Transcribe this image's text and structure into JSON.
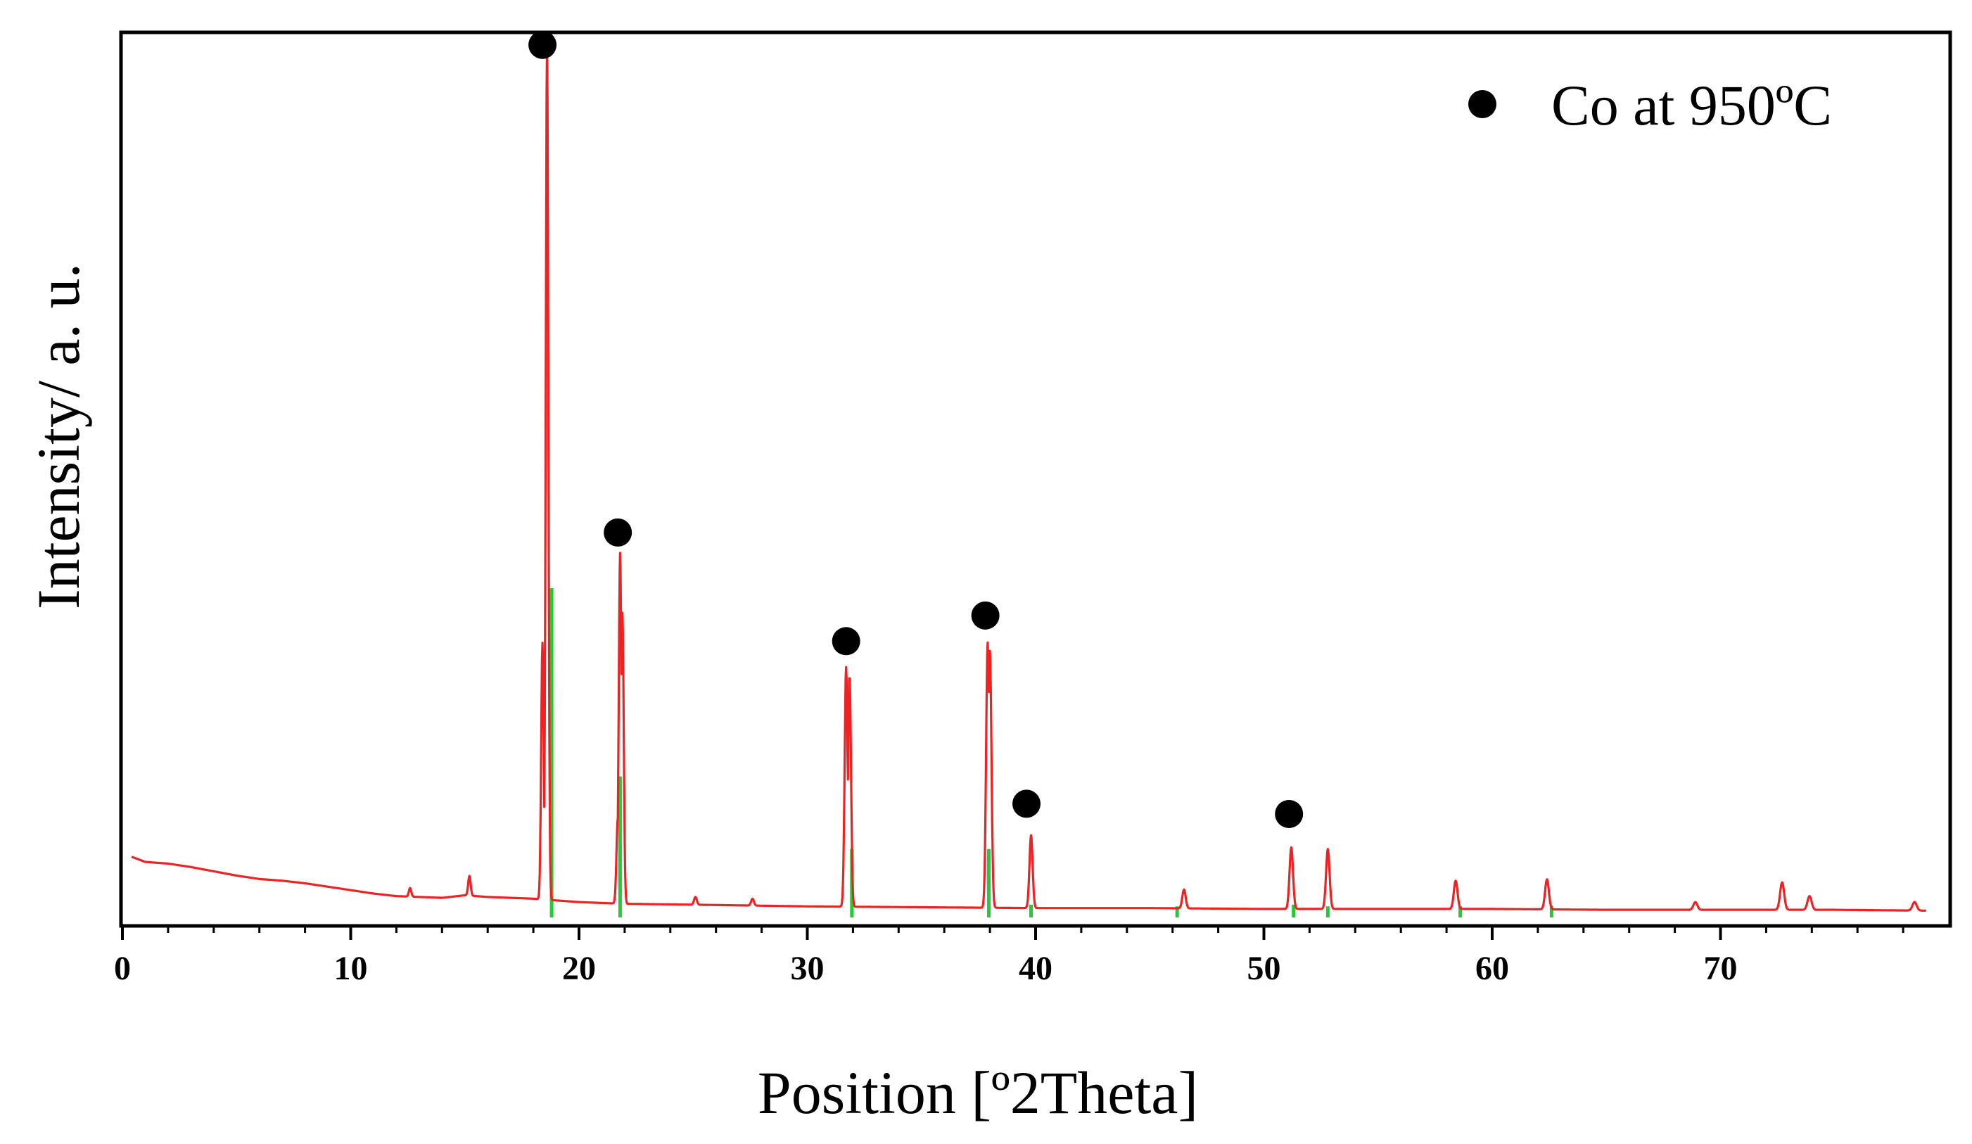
{
  "chart_data": {
    "type": "line",
    "title": "",
    "xlabel": "Position [º2Theta]",
    "ylabel": "Intensity/ a. u.",
    "xlim": [
      0,
      80
    ],
    "ylim": [
      0,
      100
    ],
    "x_ticks": [
      {
        "value": 0,
        "label": "0"
      },
      {
        "value": 10,
        "label": "10"
      },
      {
        "value": 20,
        "label": "20"
      },
      {
        "value": 30,
        "label": "30"
      },
      {
        "value": 40,
        "label": "40"
      },
      {
        "value": 50,
        "label": "50"
      },
      {
        "value": 60,
        "label": "60"
      },
      {
        "value": 70,
        "label": "70"
      }
    ],
    "grid": false,
    "legend_position": "top-right",
    "legend": [
      {
        "label": "Co at 950ºC",
        "marker": "filled-circle"
      }
    ],
    "colors": {
      "pattern": "#ee2222",
      "reference": "#22cc33",
      "marker": "#000000",
      "frame": "#000000"
    },
    "series": [
      {
        "kind": "measured-pattern",
        "color": "#ee2222",
        "baseline": [
          [
            0.4,
            6.6
          ],
          [
            1.0,
            6.0
          ],
          [
            2.0,
            5.8
          ],
          [
            3.0,
            5.4
          ],
          [
            4.0,
            4.9
          ],
          [
            5.0,
            4.4
          ],
          [
            6.0,
            4.0
          ],
          [
            7.0,
            3.8
          ],
          [
            8.0,
            3.5
          ],
          [
            9.0,
            3.1
          ],
          [
            10.0,
            2.7
          ],
          [
            11.0,
            2.3
          ],
          [
            12.0,
            2.0
          ],
          [
            13.0,
            1.9
          ],
          [
            14.0,
            1.8
          ],
          [
            15.0,
            2.1
          ],
          [
            16.0,
            1.9
          ],
          [
            17.0,
            1.8
          ],
          [
            18.0,
            1.7
          ],
          [
            20.0,
            1.3
          ],
          [
            22.0,
            1.1
          ],
          [
            25.0,
            1.0
          ],
          [
            30.0,
            0.8
          ],
          [
            35.0,
            0.7
          ],
          [
            40.0,
            0.6
          ],
          [
            45.0,
            0.6
          ],
          [
            50.0,
            0.5
          ],
          [
            55.0,
            0.5
          ],
          [
            60.0,
            0.5
          ],
          [
            65.0,
            0.4
          ],
          [
            70.0,
            0.4
          ],
          [
            75.0,
            0.4
          ],
          [
            79.0,
            0.3
          ]
        ],
        "peaks": [
          {
            "x": 12.6,
            "h": 1.0
          },
          {
            "x": 15.2,
            "h": 2.3
          },
          {
            "x": 18.4,
            "h": 30
          },
          {
            "x": 18.6,
            "h": 100
          },
          {
            "x": 21.7,
            "h": 10
          },
          {
            "x": 21.8,
            "h": 41
          },
          {
            "x": 21.9,
            "h": 34
          },
          {
            "x": 25.1,
            "h": 0.9
          },
          {
            "x": 27.6,
            "h": 0.8
          },
          {
            "x": 31.7,
            "h": 28
          },
          {
            "x": 31.85,
            "h": 27
          },
          {
            "x": 37.9,
            "h": 31
          },
          {
            "x": 38.0,
            "h": 30
          },
          {
            "x": 39.8,
            "h": 8.5
          },
          {
            "x": 46.5,
            "h": 2.2
          },
          {
            "x": 51.2,
            "h": 7.2
          },
          {
            "x": 52.8,
            "h": 7.0
          },
          {
            "x": 58.4,
            "h": 3.3
          },
          {
            "x": 62.4,
            "h": 3.5
          },
          {
            "x": 68.9,
            "h": 0.9
          },
          {
            "x": 72.7,
            "h": 3.2
          },
          {
            "x": 73.9,
            "h": 1.6
          },
          {
            "x": 78.5,
            "h": 1.0
          }
        ]
      },
      {
        "kind": "reference-lines",
        "color": "#22cc33",
        "lines": [
          {
            "x": 18.8,
            "h": 38
          },
          {
            "x": 21.8,
            "h": 16
          },
          {
            "x": 31.95,
            "h": 7.5
          },
          {
            "x": 37.95,
            "h": 7.5
          },
          {
            "x": 39.8,
            "h": 1.0
          },
          {
            "x": 46.2,
            "h": 0.8
          },
          {
            "x": 51.3,
            "h": 1.0
          },
          {
            "x": 52.8,
            "h": 0.8
          },
          {
            "x": 58.6,
            "h": 0.8
          },
          {
            "x": 62.6,
            "h": 0.9
          }
        ]
      }
    ],
    "markers": [
      {
        "x": 18.4,
        "y": 101.5
      },
      {
        "x": 21.7,
        "y": 44.5
      },
      {
        "x": 31.7,
        "y": 31.8
      },
      {
        "x": 37.8,
        "y": 34.8
      },
      {
        "x": 39.6,
        "y": 12.8
      },
      {
        "x": 51.1,
        "y": 11.6
      }
    ]
  }
}
